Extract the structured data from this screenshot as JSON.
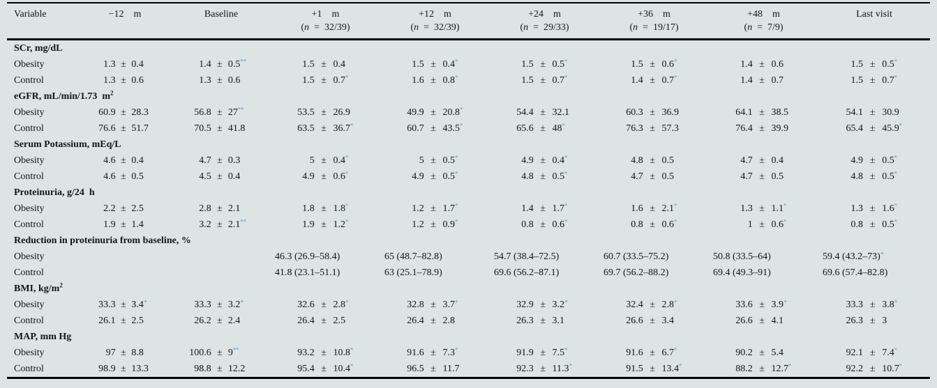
{
  "style": {
    "background": "#dde4e4",
    "star_color": "#66aedd",
    "plus_color": "#2f9fd8",
    "rule_color": "#000000",
    "text_color": "#151515"
  },
  "header": {
    "columns": [
      {
        "label": "Variable",
        "sub": ""
      },
      {
        "label": "−12  m",
        "sub": ""
      },
      {
        "label": "Baseline",
        "sub": ""
      },
      {
        "label": "+1  m",
        "sub": "(n = 32/39)"
      },
      {
        "label": "+12  m",
        "sub": "(n = 32/39)"
      },
      {
        "label": "+24  m",
        "sub": "(n = 29/33)"
      },
      {
        "label": "+36  m",
        "sub": "(n = 19/17)"
      },
      {
        "label": "+48  m",
        "sub": "(n = 7/9)"
      },
      {
        "label": "Last visit",
        "sub": ""
      }
    ]
  },
  "sections": [
    {
      "title": "SCr, mg/dL",
      "sup": "",
      "rows": [
        {
          "label": "Obesity",
          "cells": [
            {
              "v": "1.3",
              "sd": "0.4",
              "m": ""
            },
            {
              "v": "1.4",
              "sd": "0.5",
              "m": "**"
            },
            {
              "v": "1.5",
              "sd": "0.4",
              "m": ""
            },
            {
              "v": "1.5",
              "sd": "0.4",
              "m": "*"
            },
            {
              "v": "1.5",
              "sd": "0.5",
              "m": "*"
            },
            {
              "v": "1.5",
              "sd": "0.6",
              "m": "*"
            },
            {
              "v": "1.4",
              "sd": "0.6",
              "m": ""
            },
            {
              "v": "1.5",
              "sd": "0.5",
              "m": "*"
            }
          ]
        },
        {
          "label": "Control",
          "cells": [
            {
              "v": "1.3",
              "sd": "0.6",
              "m": ""
            },
            {
              "v": "1.3",
              "sd": "0.6",
              "m": ""
            },
            {
              "v": "1.5",
              "sd": "0.7",
              "m": "*"
            },
            {
              "v": "1.6",
              "sd": "0.8",
              "m": "*"
            },
            {
              "v": "1.5",
              "sd": "0.7",
              "m": "*"
            },
            {
              "v": "1.4",
              "sd": "0.7",
              "m": "*"
            },
            {
              "v": "1.4",
              "sd": "0.7",
              "m": ""
            },
            {
              "v": "1.5",
              "sd": "0.7",
              "m": "*"
            }
          ]
        }
      ]
    },
    {
      "title": "eGFR, mL/min/1.73 m",
      "sup": "2",
      "rows": [
        {
          "label": "Obesity",
          "cells": [
            {
              "v": "60.9",
              "sd": "28.3",
              "m": ""
            },
            {
              "v": "56.8",
              "sd": "27",
              "m": "**"
            },
            {
              "v": "53.5",
              "sd": "26.9",
              "m": ""
            },
            {
              "v": "49.9",
              "sd": "20.8",
              "m": "*"
            },
            {
              "v": "54.4",
              "sd": "32.1",
              "m": ""
            },
            {
              "v": "60.3",
              "sd": "36.9",
              "m": ""
            },
            {
              "v": "64.1",
              "sd": "38.5",
              "m": ""
            },
            {
              "v": "54.1",
              "sd": "30.9",
              "m": ""
            }
          ]
        },
        {
          "label": "Control",
          "cells": [
            {
              "v": "76.6",
              "sd": "51.7",
              "m": ""
            },
            {
              "v": "70.5",
              "sd": "41.8",
              "m": ""
            },
            {
              "v": "63.5",
              "sd": "36.7",
              "m": "*"
            },
            {
              "v": "60.7",
              "sd": "43.5",
              "m": "*"
            },
            {
              "v": "65.6",
              "sd": "48",
              "m": "*"
            },
            {
              "v": "76.3",
              "sd": "57.3",
              "m": ""
            },
            {
              "v": "76.4",
              "sd": "39.9",
              "m": ""
            },
            {
              "v": "65.4",
              "sd": "45.9",
              "m": "*"
            }
          ]
        }
      ]
    },
    {
      "title": "Serum Potassium, mEq/L",
      "sup": "",
      "rows": [
        {
          "label": "Obesity",
          "cells": [
            {
              "v": "4.6",
              "sd": "0.4",
              "m": ""
            },
            {
              "v": "4.7",
              "sd": "0.3",
              "m": ""
            },
            {
              "v": "5",
              "sd": "0.4",
              "m": "*"
            },
            {
              "v": "5",
              "sd": "0.5",
              "m": "*"
            },
            {
              "v": "4.9",
              "sd": "0.4",
              "m": "*"
            },
            {
              "v": "4.8",
              "sd": "0.5",
              "m": ""
            },
            {
              "v": "4.7",
              "sd": "0.4",
              "m": ""
            },
            {
              "v": "4.9",
              "sd": "0.5",
              "m": "*"
            }
          ]
        },
        {
          "label": "Control",
          "cells": [
            {
              "v": "4.6",
              "sd": "0.5",
              "m": ""
            },
            {
              "v": "4.5",
              "sd": "0.4",
              "m": ""
            },
            {
              "v": "4.9",
              "sd": "0.6",
              "m": "*"
            },
            {
              "v": "4.9",
              "sd": "0.5",
              "m": "*"
            },
            {
              "v": "4.8",
              "sd": "0.5",
              "m": "*"
            },
            {
              "v": "4.7",
              "sd": "0.5",
              "m": ""
            },
            {
              "v": "4.7",
              "sd": "0.5",
              "m": ""
            },
            {
              "v": "4.8",
              "sd": "0.5",
              "m": "*"
            }
          ]
        }
      ]
    },
    {
      "title": "Proteinuria, g/24 h",
      "sup": "",
      "rows": [
        {
          "label": "Obesity",
          "cells": [
            {
              "v": "2.2",
              "sd": "2.5",
              "m": ""
            },
            {
              "v": "2.8",
              "sd": "2.1",
              "m": ""
            },
            {
              "v": "1.8",
              "sd": "1.8",
              "m": "*"
            },
            {
              "v": "1.2",
              "sd": "1.7",
              "m": "*"
            },
            {
              "v": "1.4",
              "sd": "1.7",
              "m": "*"
            },
            {
              "v": "1.6",
              "sd": "2.1",
              "m": "*"
            },
            {
              "v": "1.3",
              "sd": "1.1",
              "m": "*"
            },
            {
              "v": "1.3",
              "sd": "1.6",
              "m": "*"
            }
          ]
        },
        {
          "label": "Control",
          "cells": [
            {
              "v": "1.9",
              "sd": "1.4",
              "m": ""
            },
            {
              "v": "3.2",
              "sd": "2.1",
              "m": "**"
            },
            {
              "v": "1.9",
              "sd": "1.2",
              "m": "*"
            },
            {
              "v": "1.2",
              "sd": "0.9",
              "m": "*"
            },
            {
              "v": "0.8",
              "sd": "0.6",
              "m": "*"
            },
            {
              "v": "0.8",
              "sd": "0.6",
              "m": "*"
            },
            {
              "v": "1",
              "sd": "0.6",
              "m": "*"
            },
            {
              "v": "0.8",
              "sd": "0.5",
              "m": "*"
            }
          ]
        }
      ]
    },
    {
      "title": "Reduction in proteinuria from baseline, %",
      "sup": "",
      "rows": [
        {
          "label": "Obesity",
          "cells": [
            null,
            null,
            {
              "t": "46.3 (26.9–58.4)",
              "m": ""
            },
            {
              "t": "65 (48.7–82.8)",
              "m": ""
            },
            {
              "t": "54.7 (38.4–72.5)",
              "m": ""
            },
            {
              "t": "60.7 (33.5–75.2)",
              "m": ""
            },
            {
              "t": "50.8 (33.5–64)",
              "m": ""
            },
            {
              "t": "59.4 (43.2–73)",
              "m": "+"
            }
          ]
        },
        {
          "label": "Control",
          "cells": [
            null,
            null,
            {
              "t": "41.8 (23.1–51.1)",
              "m": ""
            },
            {
              "t": "63 (25.1–78.9)",
              "m": ""
            },
            {
              "t": "69.6 (56.2–87.1)",
              "m": ""
            },
            {
              "t": "69.7 (56.2–88.2)",
              "m": ""
            },
            {
              "t": "69.4 (49.3–91)",
              "m": ""
            },
            {
              "t": "69.6 (57.4–82.8)",
              "m": ""
            }
          ]
        }
      ]
    },
    {
      "title": "BMI, kg/m",
      "sup": "2",
      "rows": [
        {
          "label": "Obesity",
          "cells": [
            {
              "v": "33.3",
              "sd": "3.4",
              "m": "+"
            },
            {
              "v": "33.3",
              "sd": "3.2",
              "m": "+"
            },
            {
              "v": "32.6",
              "sd": "2.8",
              "m": "+"
            },
            {
              "v": "32.8",
              "sd": "3.7",
              "m": "+"
            },
            {
              "v": "32.9",
              "sd": "3.2",
              "m": "+"
            },
            {
              "v": "32.4",
              "sd": "2.8",
              "m": "+"
            },
            {
              "v": "33.6",
              "sd": "3.9",
              "m": "+"
            },
            {
              "v": "33.3",
              "sd": "3.8",
              "m": "+"
            }
          ]
        },
        {
          "label": "Control",
          "cells": [
            {
              "v": "26.1",
              "sd": "2.5",
              "m": ""
            },
            {
              "v": "26.2",
              "sd": "2.4",
              "m": ""
            },
            {
              "v": "26.4",
              "sd": "2.5",
              "m": ""
            },
            {
              "v": "26.4",
              "sd": "2.8",
              "m": ""
            },
            {
              "v": "26.3",
              "sd": "3.1",
              "m": ""
            },
            {
              "v": "26.6",
              "sd": "3.4",
              "m": ""
            },
            {
              "v": "26.6",
              "sd": "4.1",
              "m": ""
            },
            {
              "v": "26.3",
              "sd": "3",
              "m": ""
            }
          ]
        }
      ]
    },
    {
      "title": "MAP, mm Hg",
      "sup": "",
      "rows": [
        {
          "label": "Obesity",
          "cells": [
            {
              "v": "97",
              "sd": "8.8",
              "m": ""
            },
            {
              "v": "100.6",
              "sd": "9",
              "m": "**"
            },
            {
              "v": "93.2",
              "sd": "10.8",
              "m": "*"
            },
            {
              "v": "91.6",
              "sd": "7.3",
              "m": "*"
            },
            {
              "v": "91.9",
              "sd": "7.5",
              "m": "*"
            },
            {
              "v": "91.6",
              "sd": "6.7",
              "m": "*"
            },
            {
              "v": "90.2",
              "sd": "5.4",
              "m": ""
            },
            {
              "v": "92.1",
              "sd": "7.4",
              "m": "*"
            }
          ]
        },
        {
          "label": "Control",
          "cells": [
            {
              "v": "98.9",
              "sd": "13.3",
              "m": ""
            },
            {
              "v": "98.8",
              "sd": "12.2",
              "m": ""
            },
            {
              "v": "95.4",
              "sd": "10.4",
              "m": "*"
            },
            {
              "v": "96.5",
              "sd": "11.7",
              "m": ""
            },
            {
              "v": "92.3",
              "sd": "11.3",
              "m": "*"
            },
            {
              "v": "91.5",
              "sd": "13.4",
              "m": "*"
            },
            {
              "v": "88.2",
              "sd": "12.7",
              "m": "*"
            },
            {
              "v": "92.2",
              "sd": "10.7",
              "m": "*"
            }
          ]
        }
      ]
    }
  ]
}
